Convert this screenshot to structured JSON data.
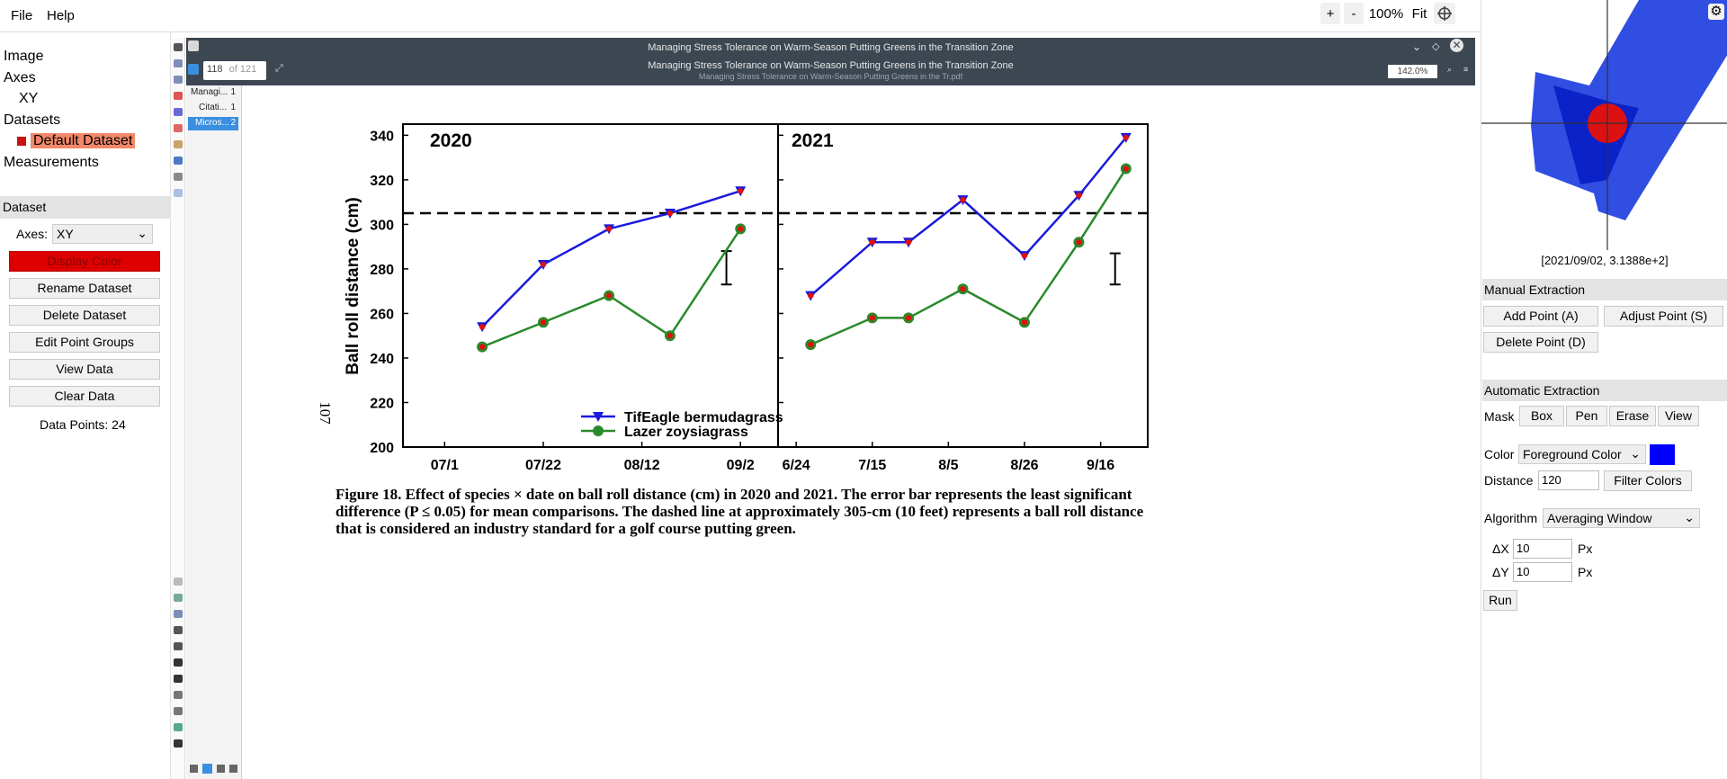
{
  "menubar": {
    "file": "File",
    "help": "Help",
    "zoom_in": "+",
    "zoom_out": "-",
    "zoom_level": "100%",
    "fit": "Fit"
  },
  "tree": {
    "image": "Image",
    "axes": "Axes",
    "xy": "XY",
    "datasets": "Datasets",
    "default_dataset": "Default Dataset",
    "measurements": "Measurements"
  },
  "dataset_panel": {
    "title": "Dataset",
    "axes_label": "Axes:",
    "axes_value": "XY",
    "display_color": "Display Color",
    "rename": "Rename Dataset",
    "delete": "Delete Dataset",
    "edit_groups": "Edit Point Groups",
    "view_data": "View Data",
    "clear_data": "Clear Data",
    "data_points": "Data Points: 24",
    "display_color_hex": "#dd0000"
  },
  "pdf": {
    "window_title": "Managing Stress Tolerance on Warm-Season Putting Greens in the Transition Zone",
    "doc_title": "Managing Stress Tolerance on Warm-Season Putting Greens in the Transition Zone",
    "file_name": "Managing Stress Tolerance on Warm-Season Putting Greens in the Tr.pdf",
    "page_current": "118",
    "page_total": "of 121",
    "zoom": "142.0%",
    "outline": [
      "Managi...",
      "Citati...",
      "Micros..."
    ],
    "outline_counts": [
      "1",
      "1",
      "2"
    ],
    "page_number": "107",
    "caption_lines": [
      "Figure 18. Effect of species × date on ball roll distance (cm) in 2020 and 2021. The error bar represents the least significant",
      "difference (P ≤ 0.05) for mean comparisons. The dashed line at approximately 305-cm (10 feet) represents a ball roll distance",
      "that is considered an industry standard for a golf course putting green."
    ]
  },
  "chart_data": {
    "type": "line",
    "ylabel": "Ball roll distance (cm)",
    "ylim": [
      200,
      345
    ],
    "yticks": [
      200,
      220,
      240,
      260,
      280,
      300,
      320,
      340
    ],
    "reference_line": 305,
    "legend": [
      "TifEagle bermudagrass",
      "Lazer zoysiagrass"
    ],
    "legend_position": "bottom-right of 2020 panel",
    "series_colors": {
      "TifEagle bermudagrass": "#1a1adb",
      "Lazer zoysiagrass": "#2a8a2a"
    },
    "panels": [
      {
        "title": "2020",
        "xticks": [
          "07/1",
          "07/22",
          "08/12",
          "09/2"
        ],
        "x": [
          "2020-07-09",
          "2020-07-22",
          "2020-08-05",
          "2020-08-18",
          "2020-09-02"
        ],
        "series": [
          {
            "name": "TifEagle bermudagrass",
            "values": [
              254,
              282,
              298,
              305,
              315
            ]
          },
          {
            "name": "Lazer zoysiagrass",
            "values": [
              245,
              256,
              268,
              250,
              298
            ]
          }
        ],
        "error_bar": {
          "x": "2020-08-30",
          "low": 273,
          "high": 288
        }
      },
      {
        "title": "2021",
        "xticks": [
          "6/24",
          "7/15",
          "8/5",
          "8/26",
          "9/16"
        ],
        "x": [
          "2021-06-28",
          "2021-07-15",
          "2021-07-25",
          "2021-08-09",
          "2021-08-26",
          "2021-09-10",
          "2021-09-23"
        ],
        "series": [
          {
            "name": "TifEagle bermudagrass",
            "values": [
              268,
              292,
              292,
              311,
              286,
              313,
              339
            ]
          },
          {
            "name": "Lazer zoysiagrass",
            "values": [
              246,
              258,
              258,
              271,
              256,
              292,
              325
            ]
          }
        ],
        "error_bar": {
          "x": "2021-09-20",
          "low": 273,
          "high": 287
        }
      }
    ]
  },
  "magnifier": {
    "coords": "[2021/09/02, 3.1388e+2]"
  },
  "manual": {
    "title": "Manual Extraction",
    "add": "Add Point (A)",
    "adjust": "Adjust Point (S)",
    "delete": "Delete Point (D)"
  },
  "automatic": {
    "title": "Automatic Extraction",
    "mask": "Mask",
    "box": "Box",
    "pen": "Pen",
    "erase": "Erase",
    "view": "View",
    "color_label": "Color",
    "color_value": "Foreground Color",
    "color_hex": "#0000ff",
    "distance_label": "Distance",
    "distance_value": "120",
    "filter": "Filter Colors",
    "algorithm_label": "Algorithm",
    "algorithm_value": "Averaging Window",
    "dx_label": "ΔX",
    "dx_value": "10",
    "dy_label": "ΔY",
    "dy_value": "10",
    "px": "Px",
    "run": "Run"
  }
}
